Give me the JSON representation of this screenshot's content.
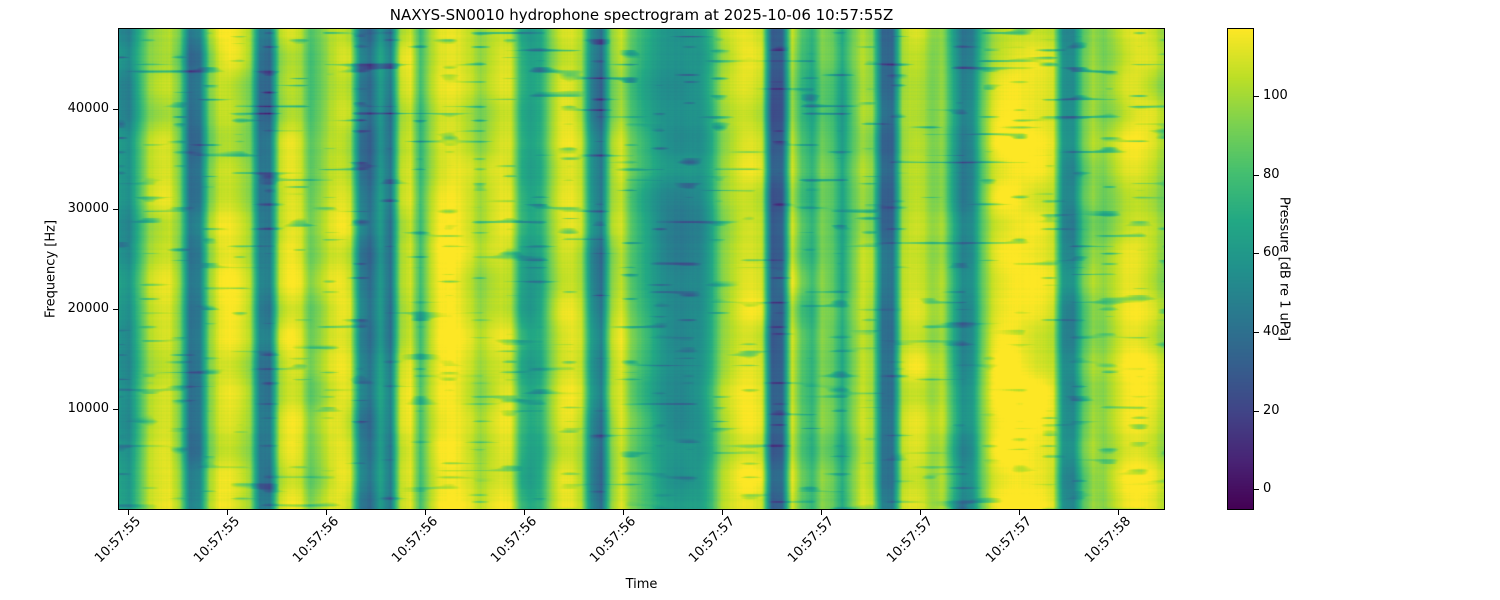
{
  "figure": {
    "title": "NAXYS-SN0010 hydrophone spectrogram at 2025-10-06 10:57:55Z"
  },
  "chart_data": {
    "type": "heatmap",
    "subtype": "spectrogram",
    "title": "NAXYS-SN0010 hydrophone spectrogram at 2025-10-06 10:57:55Z",
    "xlabel": "Time",
    "ylabel": "Frequency [Hz]",
    "x_tick_labels": [
      "10:57:55",
      "10:57:55",
      "10:57:56",
      "10:57:56",
      "10:57:56",
      "10:57:56",
      "10:57:57",
      "10:57:57",
      "10:57:57",
      "10:57:57",
      "10:57:58"
    ],
    "x_tick_rotation_deg": 45,
    "y_tick_values": [
      10000,
      20000,
      30000,
      40000
    ],
    "y_range_hz": [
      0,
      48000
    ],
    "colorbar": {
      "label": "Pressure [dB re 1 uPa]",
      "tick_values": [
        0,
        20,
        40,
        60,
        80,
        100
      ],
      "vmin": -5,
      "vmax": 117,
      "colormap": "viridis",
      "stops": [
        [
          0.0,
          "#440154"
        ],
        [
          0.1,
          "#482475"
        ],
        [
          0.2,
          "#414487"
        ],
        [
          0.3,
          "#355f8d"
        ],
        [
          0.4,
          "#2a788e"
        ],
        [
          0.5,
          "#21918c"
        ],
        [
          0.6,
          "#22a884"
        ],
        [
          0.7,
          "#44bf70"
        ],
        [
          0.8,
          "#7ad151"
        ],
        [
          0.9,
          "#bddf26"
        ],
        [
          1.0,
          "#fde725"
        ]
      ]
    },
    "time_profile_db": [
      58,
      52,
      78,
      100,
      106,
      108,
      92,
      40,
      44,
      95,
      110,
      112,
      107,
      98,
      44,
      42,
      104,
      112,
      109,
      88,
      97,
      108,
      112,
      106,
      48,
      38,
      62,
      42,
      104,
      110,
      78,
      102,
      114,
      116,
      113,
      107,
      98,
      106,
      111,
      109,
      72,
      64,
      70,
      96,
      110,
      112,
      104,
      55,
      40,
      96,
      108,
      86,
      76,
      66,
      58,
      54,
      53,
      55,
      57,
      72,
      98,
      106,
      112,
      112,
      108,
      30,
      32,
      106,
      82,
      72,
      92,
      86,
      66,
      88,
      106,
      100,
      42,
      40,
      104,
      110,
      108,
      96,
      100,
      70,
      46,
      52,
      86,
      108,
      114,
      116,
      115,
      114,
      112,
      108,
      54,
      50,
      84,
      98,
      92,
      100,
      108,
      112,
      110,
      106,
      96
    ],
    "noise": {
      "seed": 7,
      "blob_amplitude_db": 13,
      "blob2_amplitude_db": 8,
      "streak_depth_db": 34,
      "freq_brightness_gain_db": 4
    }
  }
}
